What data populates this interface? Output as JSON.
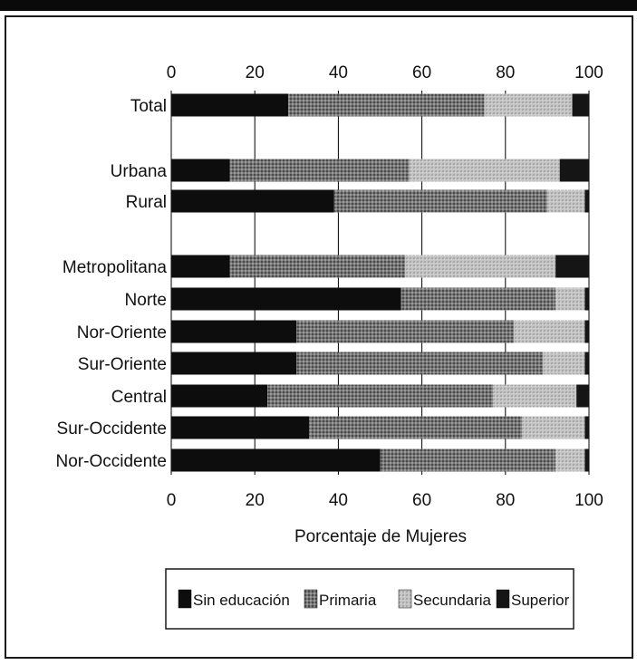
{
  "chart_data": {
    "type": "bar",
    "orientation": "horizontal",
    "stacked": true,
    "xlabel": "Porcentaje de Mujeres",
    "xlim": [
      0,
      100
    ],
    "ticks": [
      "0",
      "20",
      "40",
      "60",
      "80",
      "100"
    ],
    "categories": [
      "Total",
      "",
      "Urbana",
      "Rural",
      "",
      "Metropolitana",
      "Norte",
      "Nor-Oriente",
      "Sur-Oriente",
      "Central",
      "Sur-Occidente",
      "Nor-Occidente"
    ],
    "series": [
      {
        "name": "Sin educación",
        "values": [
          28,
          null,
          14,
          39,
          null,
          14,
          55,
          30,
          30,
          23,
          33,
          50
        ]
      },
      {
        "name": "Primaria",
        "values": [
          47,
          null,
          43,
          51,
          null,
          42,
          37,
          52,
          59,
          54,
          51,
          42
        ]
      },
      {
        "name": "Secundaria",
        "values": [
          21,
          null,
          36,
          9,
          null,
          36,
          7,
          17,
          10,
          20,
          15,
          7
        ]
      },
      {
        "name": "Superior",
        "values": [
          4,
          null,
          7,
          1,
          null,
          8,
          1,
          1,
          1,
          3,
          1,
          1
        ]
      }
    ],
    "legend_position": "bottom",
    "colors": [
      "#0d0d0d",
      "#6e6e6e",
      "#b9b9b9",
      "#151515"
    ]
  }
}
